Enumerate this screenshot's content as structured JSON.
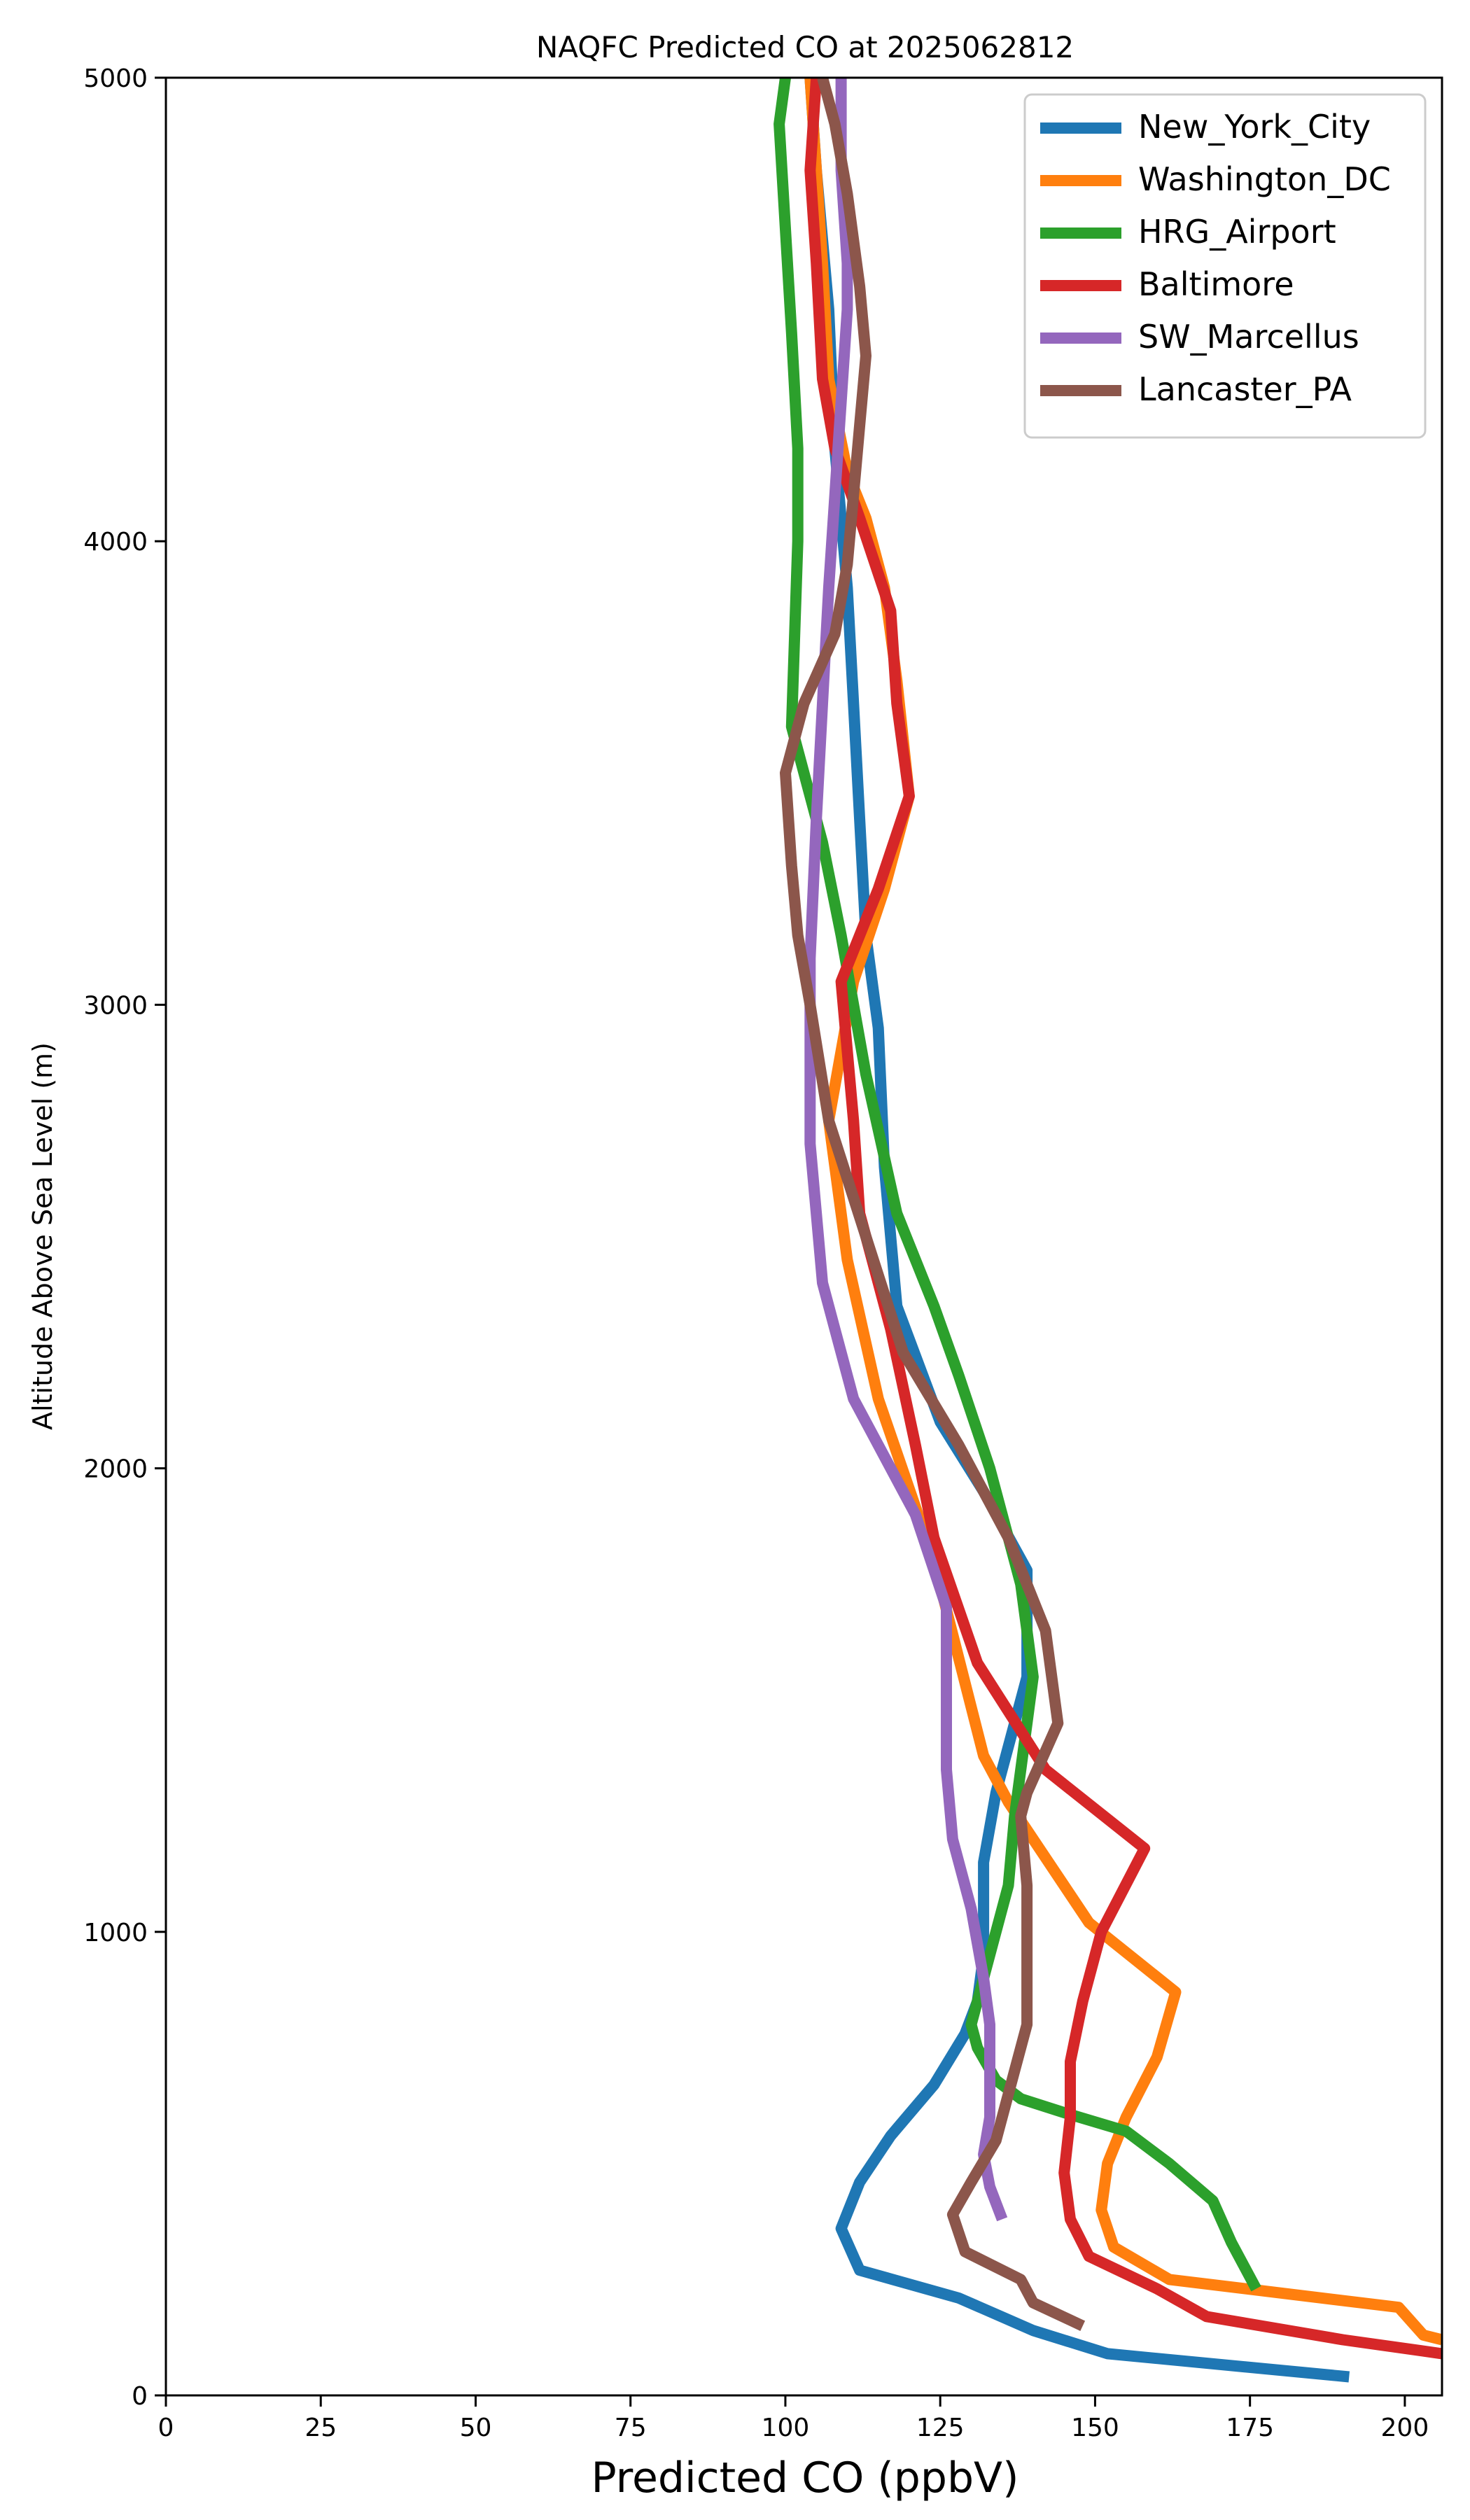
{
  "chart_data": {
    "type": "line",
    "title": "NAQFC Predicted CO at 2025062812",
    "xlabel": "Predicted CO (ppbV)",
    "ylabel": "Altitude Above Sea Level (m)",
    "xlim": [
      0,
      206
    ],
    "ylim": [
      0,
      5000
    ],
    "xticks": [
      0,
      25,
      50,
      75,
      100,
      125,
      150,
      175,
      200
    ],
    "yticks": [
      0,
      1000,
      2000,
      3000,
      4000,
      5000
    ],
    "legend": "top-right",
    "grid": false,
    "series": [
      {
        "name": "New_York_City",
        "color": "#1f77b4",
        "points": [
          [
            191,
            40
          ],
          [
            152,
            90
          ],
          [
            140,
            140
          ],
          [
            128,
            210
          ],
          [
            112,
            270
          ],
          [
            109,
            360
          ],
          [
            112,
            460
          ],
          [
            117,
            560
          ],
          [
            124,
            670
          ],
          [
            129,
            780
          ],
          [
            131,
            850
          ],
          [
            132,
            950
          ],
          [
            132,
            1050
          ],
          [
            132,
            1150
          ],
          [
            134,
            1300
          ],
          [
            137,
            1450
          ],
          [
            139,
            1550
          ],
          [
            139,
            1780
          ],
          [
            132,
            1950
          ],
          [
            125,
            2100
          ],
          [
            118,
            2350
          ],
          [
            116,
            2650
          ],
          [
            115,
            2950
          ],
          [
            113,
            3150
          ],
          [
            112,
            3400
          ],
          [
            111,
            3650
          ],
          [
            110,
            3900
          ],
          [
            108,
            4200
          ],
          [
            107,
            4500
          ],
          [
            105,
            4800
          ],
          [
            104,
            5000
          ]
        ]
      },
      {
        "name": "Washington_DC",
        "color": "#ff7f0e",
        "points": [
          [
            206,
            120
          ],
          [
            203,
            130
          ],
          [
            199,
            190
          ],
          [
            162,
            250
          ],
          [
            153,
            320
          ],
          [
            151,
            400
          ],
          [
            152,
            500
          ],
          [
            155,
            600
          ],
          [
            160,
            730
          ],
          [
            163,
            870
          ],
          [
            149,
            1020
          ],
          [
            136,
            1280
          ],
          [
            132,
            1380
          ],
          [
            124,
            1800
          ],
          [
            115,
            2150
          ],
          [
            110,
            2450
          ],
          [
            107,
            2750
          ],
          [
            109,
            2900
          ],
          [
            111,
            3050
          ],
          [
            116,
            3250
          ],
          [
            120,
            3450
          ],
          [
            118,
            3700
          ],
          [
            116,
            3900
          ],
          [
            113,
            4050
          ],
          [
            110,
            4150
          ],
          [
            107,
            4350
          ],
          [
            106,
            4600
          ],
          [
            105,
            4800
          ],
          [
            104,
            5000
          ]
        ]
      },
      {
        "name": "HRG_Airport",
        "color": "#2ca02c",
        "points": [
          [
            176,
            230
          ],
          [
            172,
            330
          ],
          [
            169,
            420
          ],
          [
            162,
            500
          ],
          [
            155,
            570
          ],
          [
            145,
            610
          ],
          [
            138,
            640
          ],
          [
            134,
            680
          ],
          [
            131,
            750
          ],
          [
            130,
            800
          ],
          [
            132,
            900
          ],
          [
            134,
            1000
          ],
          [
            136,
            1100
          ],
          [
            137,
            1250
          ],
          [
            139,
            1450
          ],
          [
            140,
            1550
          ],
          [
            138,
            1750
          ],
          [
            133,
            2000
          ],
          [
            128,
            2200
          ],
          [
            124,
            2350
          ],
          [
            118,
            2550
          ],
          [
            113,
            2850
          ],
          [
            109,
            3150
          ],
          [
            106,
            3350
          ],
          [
            103,
            3500
          ],
          [
            101,
            3600
          ],
          [
            102,
            4000
          ],
          [
            102,
            4200
          ],
          [
            101,
            4450
          ],
          [
            99,
            4900
          ],
          [
            100,
            5000
          ]
        ]
      },
      {
        "name": "Baltimore",
        "color": "#d62728",
        "points": [
          [
            206,
            90
          ],
          [
            190,
            120
          ],
          [
            168,
            170
          ],
          [
            160,
            230
          ],
          [
            149,
            300
          ],
          [
            146,
            380
          ],
          [
            145,
            480
          ],
          [
            146,
            600
          ],
          [
            146,
            720
          ],
          [
            148,
            850
          ],
          [
            151,
            1000
          ],
          [
            158,
            1180
          ],
          [
            142,
            1350
          ],
          [
            131,
            1580
          ],
          [
            124,
            1850
          ],
          [
            121,
            2050
          ],
          [
            117,
            2300
          ],
          [
            112,
            2550
          ],
          [
            111,
            2750
          ],
          [
            110,
            2900
          ],
          [
            109,
            3050
          ],
          [
            115,
            3250
          ],
          [
            120,
            3450
          ],
          [
            118,
            3650
          ],
          [
            117,
            3850
          ],
          [
            112,
            4050
          ],
          [
            108,
            4200
          ],
          [
            106,
            4350
          ],
          [
            105,
            4600
          ],
          [
            104,
            4800
          ],
          [
            105,
            5000
          ]
        ]
      },
      {
        "name": "SW_Marcellus",
        "color": "#9467bd",
        "points": [
          [
            135,
            380
          ],
          [
            133,
            450
          ],
          [
            132,
            520
          ],
          [
            133,
            600
          ],
          [
            133,
            700
          ],
          [
            133,
            800
          ],
          [
            132,
            900
          ],
          [
            130,
            1050
          ],
          [
            127,
            1200
          ],
          [
            126,
            1350
          ],
          [
            126,
            1550
          ],
          [
            126,
            1700
          ],
          [
            121,
            1900
          ],
          [
            111,
            2150
          ],
          [
            106,
            2400
          ],
          [
            104,
            2700
          ],
          [
            104,
            2900
          ],
          [
            104,
            3100
          ],
          [
            105,
            3400
          ],
          [
            106,
            3650
          ],
          [
            107,
            3900
          ],
          [
            108,
            4100
          ],
          [
            109,
            4300
          ],
          [
            110,
            4500
          ],
          [
            110,
            4600
          ],
          [
            109,
            4800
          ],
          [
            109,
            5000
          ]
        ]
      },
      {
        "name": "Lancaster_PA",
        "color": "#8c564b",
        "points": [
          [
            148,
            150
          ],
          [
            140,
            200
          ],
          [
            138,
            250
          ],
          [
            129,
            310
          ],
          [
            127,
            390
          ],
          [
            130,
            460
          ],
          [
            134,
            550
          ],
          [
            136,
            650
          ],
          [
            139,
            800
          ],
          [
            139,
            900
          ],
          [
            139,
            1100
          ],
          [
            138,
            1250
          ],
          [
            139,
            1300
          ],
          [
            144,
            1450
          ],
          [
            142,
            1650
          ],
          [
            136,
            1850
          ],
          [
            128,
            2050
          ],
          [
            119,
            2250
          ],
          [
            113,
            2500
          ],
          [
            107,
            2750
          ],
          [
            104,
            3000
          ],
          [
            102,
            3150
          ],
          [
            101,
            3300
          ],
          [
            100,
            3500
          ],
          [
            103,
            3650
          ],
          [
            108,
            3800
          ],
          [
            110,
            3950
          ],
          [
            111,
            4100
          ],
          [
            112,
            4250
          ],
          [
            113,
            4400
          ],
          [
            112,
            4550
          ],
          [
            110,
            4750
          ],
          [
            108,
            4900
          ],
          [
            106,
            5000
          ]
        ]
      }
    ]
  }
}
